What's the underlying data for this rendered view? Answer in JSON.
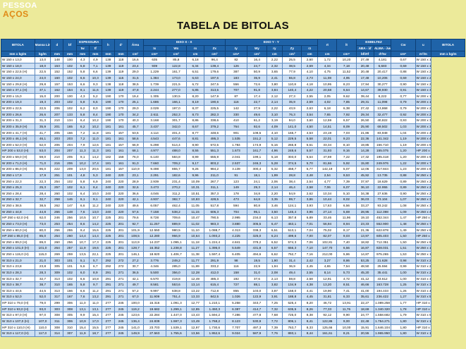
{
  "logo": {
    "line1": "PESSOA",
    "line2": "AÇOS"
  },
  "title": "TABELA DE BITOLAS",
  "header": {
    "row1": [
      {
        "t": "BITOLA",
        "cs": 1,
        "rs": 2
      },
      {
        "t": "Massa Linear",
        "cs": 1,
        "rs": 2
      },
      {
        "t": "d",
        "cs": 1,
        "rs": 2
      },
      {
        "t": "bf",
        "cs": 1,
        "rs": 2
      },
      {
        "t": "ESPESSURA",
        "cs": 2,
        "rs": 1
      },
      {
        "t": "h",
        "cs": 1,
        "rs": 2
      },
      {
        "t": "d'",
        "cs": 1,
        "rs": 2
      },
      {
        "t": "Área",
        "cs": 1,
        "rs": 2
      },
      {
        "t": "EIXO X - X",
        "cs": 4,
        "rs": 1
      },
      {
        "t": "EIXO Y - Y",
        "cs": 5,
        "rs": 1
      },
      {
        "t": "rt",
        "cs": 1,
        "rs": 2
      },
      {
        "t": "lt",
        "cs": 1,
        "rs": 2
      },
      {
        "t": "ESBELTEZ",
        "cs": 2,
        "rs": 1
      },
      {
        "t": "Cw",
        "cs": 1,
        "rs": 2
      },
      {
        "t": "u",
        "cs": 1,
        "rs": 2
      },
      {
        "t": "BITOLA",
        "cs": 1,
        "rs": 2
      }
    ],
    "row2": [
      "tw",
      "tf",
      "Ix",
      "Wx",
      "rx",
      "Zx",
      "Iy",
      "Wy",
      "ry",
      "Zy",
      "rz",
      "ABA - λf",
      "ALMA - λw"
    ],
    "units": [
      "mm x kg/m",
      "kg/m",
      "mm",
      "mm",
      "mm",
      "mm",
      "mm",
      "mm",
      "cm²",
      "cm⁴",
      "cm³",
      "cm",
      "cm³",
      "cm⁴",
      "cm³",
      "cm",
      "cm³",
      "cm",
      "cm",
      "cm⁴",
      "bf/2tf",
      "d'/tw",
      "cm⁶",
      "m²/m",
      "mm x kg/m"
    ]
  },
  "rows": [
    [
      "W 150 x 13,0",
      "13,0",
      "148",
      "100",
      "4,3",
      "4,9",
      "138",
      "118",
      "16,6",
      "635",
      "85,8",
      "6,18",
      "96,4",
      "82",
      "16,4",
      "2,22",
      "25,5",
      "2,60",
      "1,72",
      "10,20",
      "27,49",
      "4,181",
      "0,67",
      "W 150 x 13,0"
    ],
    [
      "W 150 x 18,0",
      "18,0",
      "153",
      "102",
      "5,8",
      "7,1",
      "139",
      "119",
      "23,4",
      "939",
      "122,8",
      "6,34",
      "139,4",
      "126",
      "24,7",
      "2,32",
      "38,5",
      "2,69",
      "4,34",
      "7,18",
      "20,48",
      "6,683",
      "0,69",
      "W 150 x 18,0"
    ],
    [
      "W 150 x 22,5 (H)",
      "22,5",
      "152",
      "152",
      "5,8",
      "6,6",
      "139",
      "119",
      "29,0",
      "1.229",
      "161,7",
      "6,51",
      "179,6",
      "387",
      "50,9",
      "3,65",
      "77,9",
      "4,10",
      "4,75",
      "11,52",
      "20,48",
      "20,417",
      "0,88",
      "W 150 x 22,5 (H)"
    ],
    [
      "W 150 x 24,0",
      "24,0",
      "160",
      "102",
      "6,6",
      "10,3",
      "139",
      "115",
      "31,5",
      "1.384",
      "173,0",
      "6,63",
      "197,6",
      "183",
      "35,9",
      "2,41",
      "55,8",
      "2,73",
      "11,08",
      "4,95",
      "17,48",
      "10,206",
      "0,69",
      "W 150 x 24,0"
    ],
    [
      "W 150 x 29,8 (H)",
      "29,8",
      "157",
      "153",
      "6,6",
      "9,3",
      "138",
      "118",
      "38,5",
      "1.739",
      "221,5",
      "6,72",
      "247,5",
      "556",
      "72,6",
      "3,80",
      "110,8",
      "4,18",
      "10,95",
      "8,23",
      "17,94",
      "30,277",
      "0,90",
      "W 150 x 29,8 (H)"
    ],
    [
      "W 150 x 37,1 (H)",
      "37,1",
      "162",
      "154",
      "8,1",
      "11,6",
      "139",
      "119",
      "47,8",
      "2.244",
      "277,0",
      "6,85",
      "313,5",
      "707",
      "91,8",
      "3,84",
      "140,4",
      "4,22",
      "20,58",
      "6,64",
      "14,67",
      "39,930",
      "0,91",
      "W 150 x 37,1 (H)"
    ],
    [
      "W 200 x 15,0",
      "15,0",
      "200",
      "100",
      "4,3",
      "5,2",
      "190",
      "170",
      "19,4",
      "1.305",
      "130,5",
      "8,20",
      "147,9",
      "87",
      "17,4",
      "2,12",
      "27,3",
      "2,55",
      "2,05",
      "9,62",
      "39,44",
      "8,222",
      "0,77",
      "W 200 x 15,0"
    ],
    [
      "W 200 x 19,3",
      "19,3",
      "203",
      "102",
      "5,8",
      "6,5",
      "190",
      "170",
      "25,1",
      "1.686",
      "166,1",
      "8,19",
      "190,6",
      "116",
      "22,7",
      "2,14",
      "35,9",
      "2,59",
      "4,02",
      "7,85",
      "29,31",
      "11,098",
      "0,79",
      "W 200 x 19,3"
    ],
    [
      "W 200 x 22,5",
      "22,5",
      "206",
      "102",
      "6,2",
      "8,0",
      "190",
      "170",
      "29,0",
      "2.029",
      "197,0",
      "8,37",
      "225,5",
      "142",
      "27,9",
      "2,22",
      "43,9",
      "2,63",
      "6,18",
      "6,38",
      "27,42",
      "13,868",
      "0,79",
      "W 200 x 22,5"
    ],
    [
      "W 200 x 26,6",
      "26,6",
      "207",
      "133",
      "5,8",
      "8,4",
      "190",
      "170",
      "34,2",
      "2.611",
      "252,3",
      "8,73",
      "282,3",
      "330",
      "49,6",
      "3,10",
      "76,3",
      "3,54",
      "7,65",
      "7,92",
      "29,34",
      "32,477",
      "0,92",
      "W 200 x 26,6"
    ],
    [
      "W 200 x 31,3",
      "31,3",
      "210",
      "134",
      "6,4",
      "10,2",
      "190",
      "170",
      "40,3",
      "3.168",
      "301,7",
      "8,86",
      "338,6",
      "410",
      "61,2",
      "3,19",
      "94,0",
      "3,60",
      "12,59",
      "6,57",
      "26,50",
      "40,822",
      "0,93",
      "W 200 x 31,3"
    ],
    [
      "W 200 x 35,9 (H)",
      "35,9",
      "201",
      "165",
      "6,2",
      "10,2",
      "181",
      "161",
      "45,7",
      "3.437",
      "342,0",
      "8,67",
      "379,2",
      "764",
      "92,6",
      "4,09",
      "141,0",
      "4,50",
      "14,51",
      "8,09",
      "25,90",
      "69,502",
      "1,03",
      "W 200 x 35,9 (H)"
    ],
    [
      "W 200 x 41,7 (H)",
      "41,7",
      "205",
      "166",
      "7,2",
      "11,8",
      "181",
      "157",
      "53,5",
      "4.114",
      "401,4",
      "8,77",
      "448,6",
      "901",
      "108,5",
      "4,10",
      "165,7",
      "4,53",
      "23,19",
      "7,03",
      "21,86",
      "83,948",
      "1,04",
      "W 200 x 41,7 (H)"
    ],
    [
      "W 200 x 46,1 (H)",
      "46,1",
      "203",
      "203",
      "7,2",
      "11,0",
      "181",
      "161",
      "58,6",
      "4.543",
      "447,6",
      "8,81",
      "495,3",
      "1.535",
      "151,2",
      "5,12",
      "229,5",
      "5,58",
      "22,01",
      "9,23",
      "22,36",
      "141.342",
      "1,19",
      "W 200 x 46,1 (H)"
    ],
    [
      "W 200 x 52,0 (H)",
      "52,0",
      "206",
      "204",
      "7,9",
      "12,6",
      "181",
      "157",
      "66,9",
      "5.298",
      "514,4",
      "8,90",
      "572,5",
      "1.784",
      "174,9",
      "5,16",
      "265,8",
      "5,61",
      "33,34",
      "8,10",
      "19,85",
      "166.710",
      "1,19",
      "W 200 x 52,0 (H)"
    ],
    [
      "HP 200 x 53,0 (H)",
      "53,0",
      "204",
      "207",
      "11,3",
      "11,3",
      "181",
      "161",
      "68,1",
      "4.977",
      "488,0",
      "8,55",
      "551,3",
      "1.673",
      "161,7",
      "4,96",
      "248,6",
      "5,57",
      "31,93",
      "9,16",
      "14,28",
      "155.075",
      "1,20",
      "HP 200 x 53,0 (H)"
    ],
    [
      "W 200 x 59,0 (H)",
      "59,0",
      "210",
      "205",
      "9,1",
      "14,2",
      "182",
      "158",
      "76,0",
      "6.140",
      "584,8",
      "8,99",
      "655,9",
      "2.041",
      "199,1",
      "5,18",
      "303,0",
      "5,64",
      "47,69",
      "7,22",
      "17,32",
      "195.418",
      "1,20",
      "W 200 x 59,0 (H)"
    ],
    [
      "W 200 x 71,0 (H)",
      "71,0",
      "216",
      "206",
      "10,2",
      "17,4",
      "181",
      "161",
      "91,0",
      "7.660",
      "709,2",
      "9,17",
      "803,2",
      "2.537",
      "246,3",
      "5,28",
      "374,5",
      "5,70",
      "81,66",
      "5,92",
      "15,80",
      "249.976",
      "1,22",
      "W 200 x 71,0 (H)"
    ],
    [
      "W 200 x 86,0 (H)",
      "86,0",
      "222",
      "209",
      "13,0",
      "20,6",
      "181",
      "157",
      "110,9",
      "9.498",
      "855,7",
      "9,26",
      "984,2",
      "3.139",
      "300,4",
      "5,32",
      "458,7",
      "5,77",
      "142,19",
      "5,07",
      "12,06",
      "317.844",
      "1,23",
      "W 200 x 86,0 (H)"
    ],
    [
      "W 250 x 17,9",
      "17,9",
      "251",
      "101",
      "4,8",
      "5,3",
      "240",
      "220",
      "23,1",
      "2.291",
      "182,6",
      "9,96",
      "211,0",
      "91",
      "18,1",
      "1,99",
      "28,8",
      "2,48",
      "2,54",
      "9,53",
      "45,92",
      "13.735",
      "0,88",
      "W 250 x 17,9"
    ],
    [
      "W 250 x 22,3",
      "22,3",
      "254",
      "102",
      "5,8",
      "6,9",
      "240",
      "220",
      "28,9",
      "2.939",
      "231,4",
      "10,09",
      "267,7",
      "123",
      "24,1",
      "2,06",
      "38,4",
      "2,54",
      "4,77",
      "7,39",
      "37,97",
      "18.629",
      "0,89",
      "W 250 x 22,3"
    ],
    [
      "W 250 x 25,3",
      "25,3",
      "257",
      "102",
      "6,1",
      "8,4",
      "240",
      "220",
      "32,6",
      "3.473",
      "270,2",
      "10,31",
      "311,1",
      "149",
      "29,3",
      "2,14",
      "46,4",
      "2,58",
      "7,06",
      "6,07",
      "36,10",
      "22.955",
      "0,89",
      "W 250 x 25,3"
    ],
    [
      "W 250 x 28,4",
      "28,4",
      "260",
      "102",
      "6,4",
      "10,0",
      "240",
      "220",
      "36,6",
      "4.046",
      "311,2",
      "10,51",
      "357,3",
      "178",
      "34,8",
      "2,20",
      "54,9",
      "2,62",
      "10,34",
      "5,10",
      "34,38",
      "27.636",
      "0,90",
      "W 250 x 28,4"
    ],
    [
      "W 250 x 32,7",
      "32,7",
      "258",
      "146",
      "6,1",
      "9,1",
      "240",
      "220",
      "42,1",
      "4.937",
      "382,7",
      "10,83",
      "428,5",
      "473",
      "64,8",
      "3,35",
      "99,7",
      "3,86",
      "10,44",
      "8,02",
      "36,03",
      "73.104",
      "1,07",
      "W 250 x 32,7"
    ],
    [
      "W 250 x 38,5",
      "38,5",
      "262",
      "147",
      "6,6",
      "11,2",
      "240",
      "220",
      "49,6",
      "6.057",
      "462,4",
      "11,05",
      "517,8",
      "594",
      "80,8",
      "3,46",
      "124,1",
      "3,93",
      "17,63",
      "6,56",
      "33,27",
      "93.242",
      "1,08",
      "W 250 x 38,5"
    ],
    [
      "W 250 x 44,8",
      "44,8",
      "266",
      "148",
      "7,6",
      "13,0",
      "240",
      "220",
      "57,6",
      "7.158",
      "538,2",
      "11,15",
      "606,3",
      "704",
      "95,1",
      "3,50",
      "146,4",
      "3,96",
      "27,14",
      "5,69",
      "28,95",
      "112.398",
      "1,09",
      "W 250 x 44,8"
    ],
    [
      "HP 250 x 62,0 (H)",
      "62,0",
      "246",
      "256",
      "10,5",
      "10,7",
      "225",
      "201",
      "79,6",
      "8.728",
      "709,6",
      "10,47",
      "790,5",
      "2.995",
      "234,0",
      "6,13",
      "357,8",
      "6,89",
      "33,46",
      "11,96",
      "19,10",
      "452.344",
      "1,47",
      "HP 250 x 62,0 (H)"
    ],
    [
      "W 250 x 73,0 (H)",
      "73,0",
      "253",
      "254",
      "8,6",
      "14,2",
      "225",
      "201",
      "92,7",
      "11.257",
      "889,9",
      "11,02",
      "983,3",
      "3.880",
      "305,5",
      "6,47",
      "463,1",
      "7,01",
      "56,94",
      "8,94",
      "23,33",
      "552.900",
      "1,48",
      "W 250 x 73,0 (H)"
    ],
    [
      "W 250 x 80,0 (H)",
      "80,0",
      "256",
      "255",
      "9,4",
      "15,6",
      "225",
      "201",
      "101,9",
      "12.550",
      "980,5",
      "11,10",
      "1.088,7",
      "4.313",
      "338,3",
      "6,51",
      "513,1",
      "7,04",
      "75,02",
      "8,17",
      "21,36",
      "622.878",
      "1,49",
      "W 250 x 80,0 (H)"
    ],
    [
      "HP 250 x 85,0 (H)",
      "85,0",
      "254",
      "260",
      "14,4",
      "14,4",
      "225",
      "201",
      "108,5",
      "12.280",
      "966,9",
      "10,64",
      "1.093,2",
      "4.225",
      "325,0",
      "6,24",
      "499,6",
      "7,00",
      "82,07",
      "9,03",
      "13,97",
      "605.403",
      "1,50",
      "HP 250 x 85,0 (H)"
    ],
    [
      "W 250 x 89,0 (H)",
      "89,0",
      "260",
      "256",
      "10,7",
      "17,3",
      "225",
      "201",
      "113,9",
      "14.237",
      "1.095,1",
      "11,18",
      "1.224,4",
      "4.841",
      "378,2",
      "6,52",
      "574,3",
      "7,06",
      "102,81",
      "7,40",
      "18,82",
      "712.351",
      "1,50",
      "W 250 x 89,0 (H)"
    ],
    [
      "W 250 x 101,0 (H)",
      "101,0",
      "264",
      "257",
      "11,9",
      "19,6",
      "225",
      "201",
      "128,7",
      "16.352",
      "1.238,8",
      "11,27",
      "1.395,0",
      "5.549",
      "431,8",
      "6,57",
      "656,3",
      "7,10",
      "147,70",
      "6,56",
      "16,87",
      "828.031",
      "1,51",
      "W 250 x 101,0 (H)"
    ],
    [
      "W 250 x 115,0 (H)",
      "115,0",
      "269",
      "259",
      "13,5",
      "22,1",
      "225",
      "201",
      "146,1",
      "18.920",
      "1.406,7",
      "11,38",
      "1.597,4",
      "6.405",
      "494,6",
      "6,62",
      "752,7",
      "7,16",
      "212,00",
      "5,86",
      "14,87",
      "975.265",
      "1,53",
      "W 250 x 115,0 (H)"
    ],
    [
      "W 310 x 21,0",
      "21,0",
      "303",
      "101",
      "5,1",
      "5,7",
      "292",
      "272",
      "27,2",
      "3.776",
      "249,2",
      "11,77",
      "291,9",
      "98",
      "19,5",
      "1,90",
      "31,4",
      "2,42",
      "3,27",
      "8,86",
      "53,25",
      "21.628",
      "0,98",
      "W 310 x 21,0"
    ],
    [
      "W 310 x 23,8",
      "23,8",
      "305",
      "101",
      "5,6",
      "6,7",
      "292",
      "272",
      "30,7",
      "4.346",
      "285,0",
      "11,89",
      "333,2",
      "116",
      "22,9",
      "1,94",
      "36,9",
      "2,45",
      "4,65",
      "7,54",
      "48,50",
      "25.594",
      "0,99",
      "W 310 x 23,8"
    ],
    [
      "W 310 x 28,3",
      "28,3",
      "309",
      "102",
      "6,0",
      "8,9",
      "291",
      "271",
      "36,5",
      "5.500",
      "356,0",
      "12,28",
      "412,0",
      "158",
      "31,0",
      "2,08",
      "49,4",
      "2,55",
      "8,14",
      "5,73",
      "45,20",
      "35.441",
      "1,00",
      "W 310 x 28,3"
    ],
    [
      "W 310 x 32,7",
      "32,7",
      "313",
      "102",
      "6,6",
      "10,8",
      "291",
      "271",
      "42,1",
      "6.570",
      "419,8",
      "12,49",
      "485,3",
      "192",
      "37,6",
      "2,13",
      "59,8",
      "2,58",
      "12,91",
      "4,72",
      "41,12",
      "43.612",
      "1,00",
      "W 310 x 32,7"
    ],
    [
      "W 310 x 38,7",
      "38,7",
      "310",
      "165",
      "5,8",
      "9,7",
      "291",
      "271",
      "49,7",
      "8.581",
      "553,6",
      "13,14",
      "615,4",
      "727",
      "88,1",
      "3,82",
      "134,9",
      "4,38",
      "13,20",
      "8,51",
      "46,66",
      "163.728",
      "1,25",
      "W 310 x 38,7"
    ],
    [
      "W 310 x 44,5",
      "44,5",
      "313",
      "166",
      "6,6",
      "11,2",
      "291",
      "271",
      "57,2",
      "9.997",
      "638,8",
      "13,22",
      "712,8",
      "855",
      "103,0",
      "3,87",
      "158,0",
      "4,41",
      "19,90",
      "7,41",
      "41,00",
      "194.433",
      "1,26",
      "W 310 x 44,5"
    ],
    [
      "W 310 x 52,0",
      "52,0",
      "317",
      "167",
      "7,6",
      "13,2",
      "291",
      "271",
      "67,0",
      "11.909",
      "751,4",
      "13,33",
      "842,5",
      "1.026",
      "122,9",
      "3,91",
      "188,8",
      "4,45",
      "31,81",
      "6,33",
      "35,61",
      "236.422",
      "1,27",
      "W 310 x 52,0"
    ],
    [
      "HP 310 x 79,0 (H)",
      "79,0",
      "299",
      "306",
      "11,0",
      "11,0",
      "277",
      "245",
      "100,0",
      "16.316",
      "1.091,3",
      "12,77",
      "1.210,1",
      "5.258",
      "343,7",
      "7,25",
      "525,4",
      "8,20",
      "46,72",
      "13,91",
      "22,27",
      "1.089.258",
      "1,77",
      "HP 310 x 79,0 (H)"
    ],
    [
      "HP 310 x 93,0 (H)",
      "93,0",
      "303",
      "308",
      "13,1",
      "13,1",
      "277",
      "245",
      "119,2",
      "19.682",
      "1.299,1",
      "12,85",
      "1.450,3",
      "6.387",
      "414,7",
      "7,32",
      "635,5",
      "8,26",
      "77,33",
      "11,76",
      "18,69",
      "1.340.320",
      "1,78",
      "HP 310 x 93,0 (H)"
    ],
    [
      "W 310 x 97,0 (H)",
      "97,0",
      "308",
      "305",
      "9,9",
      "15,4",
      "277",
      "245",
      "123,6",
      "22.284",
      "1.447,0",
      "13,43",
      "1.594,2",
      "7.286",
      "477,8",
      "7,68",
      "725,0",
      "8,38",
      "92,12",
      "9,90",
      "24,77",
      "1.558.682",
      "1,79",
      "W 310 x 97,0 (H)"
    ],
    [
      "W 310 x 107,0 (H)",
      "107,0",
      "311",
      "306",
      "10,9",
      "17,0",
      "277",
      "245",
      "136,4",
      "24.839",
      "1.597,3",
      "13,49",
      "1.768,2",
      "8.123",
      "530,9",
      "7,72",
      "806,1",
      "8,41",
      "122,86",
      "9,00",
      "22,48",
      "1.754.271",
      "1,80",
      "W 310 x 107,0 (H)"
    ],
    [
      "HP 310 x 110,0 (H)",
      "110,0",
      "308",
      "310",
      "15,4",
      "15,5",
      "277",
      "245",
      "141,0",
      "23.703",
      "1.539,1",
      "12,97",
      "1.730,6",
      "7.707",
      "497,3",
      "7,39",
      "763,7",
      "8,33",
      "125,66",
      "10,00",
      "15,91",
      "1.646.104",
      "1,80",
      "HP 310 x 110,0 (H)"
    ],
    [
      "W 310 x 117,0 (H)",
      "117,0",
      "314",
      "307",
      "11,9",
      "18,7",
      "277",
      "245",
      "149,9",
      "27.563",
      "1.755,6",
      "13,56",
      "1.952,6",
      "9.024",
      "587,9",
      "7,76",
      "893,1",
      "8,44",
      "161,61",
      "8,21",
      "20,55",
      "1.965.950",
      "1,80",
      "W 310 x 117,0 (H)"
    ]
  ]
}
